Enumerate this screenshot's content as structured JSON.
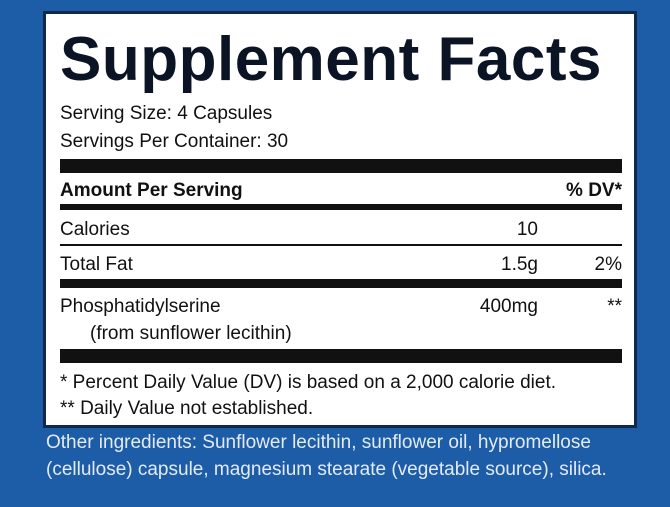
{
  "label": {
    "title": "Supplement Facts",
    "serving_size": "Serving Size: 4 Capsules",
    "servings_per_container": "Servings Per Container: 30",
    "table": {
      "header": [
        "Amount Per Serving",
        "% DV*"
      ],
      "rows": [
        {
          "name": "Calories",
          "amount": "10"
        },
        {
          "name": "Total Fat",
          "amount": "1.5g",
          "dv": "2%"
        },
        {
          "name": "Phosphatidylserine",
          "note": "(from sunflower lecithin)",
          "amount": "400mg",
          "dv": "**"
        }
      ]
    },
    "footnotes": [
      "* Percent Daily Value (DV) is based on a 2,000 calorie diet.",
      "** Daily Value not established."
    ]
  },
  "other_ingredients": "Other ingredients: Sunflower lecithin, sunflower oil, hypromellose (cellulose) capsule, magnesium stearate (vegetable source), silica."
}
